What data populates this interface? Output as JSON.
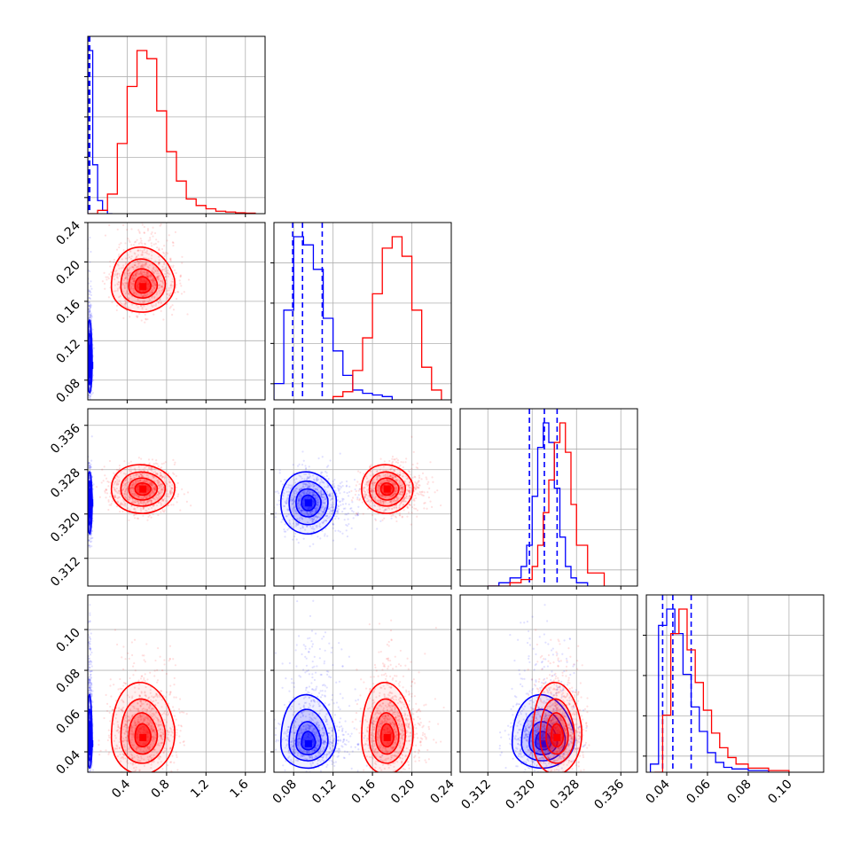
{
  "colors": {
    "blue": "#0000ff",
    "red": "#ff0000",
    "grid": "#b0b0b0"
  },
  "chart_data": {
    "type": "corner",
    "grid": true,
    "parameters": [
      {
        "range": [
          0.0,
          1.8
        ],
        "ticks": [
          0.4,
          0.8,
          1.2,
          1.6
        ],
        "tick_labels": [
          "0.4",
          "0.8",
          "1.2",
          "1.6"
        ]
      },
      {
        "range": [
          0.06,
          0.24
        ],
        "ticks": [
          0.08,
          0.12,
          0.16,
          0.2,
          0.24
        ],
        "tick_labels": [
          "0.08",
          "0.12",
          "0.16",
          "0.20",
          "0.24"
        ]
      },
      {
        "range": [
          0.307,
          0.339
        ],
        "ticks": [
          0.312,
          0.32,
          0.328,
          0.336
        ],
        "tick_labels": [
          "0.312",
          "0.320",
          "0.328",
          "0.336"
        ]
      },
      {
        "range": [
          0.03,
          0.117
        ],
        "ticks": [
          0.04,
          0.06,
          0.08,
          0.1
        ],
        "tick_labels": [
          "0.04",
          "0.06",
          "0.08",
          "0.10"
        ]
      }
    ],
    "series": [
      {
        "color": "#0000ff",
        "means": [
          0.02,
          0.095,
          0.322,
          0.044
        ],
        "sigmas": [
          0.012,
          0.014,
          0.0028,
          0.006
        ],
        "skew": [
          0,
          0.018,
          0,
          0.012
        ],
        "quantiles": [
          [
            0.005,
            0.01,
            0.02
          ],
          [
            0.079,
            0.089,
            0.109
          ],
          [
            0.3195,
            0.3222,
            0.3245
          ],
          [
            0.038,
            0.043,
            0.052
          ]
        ],
        "histograms": [
          {
            "x": [
              0.0,
              0.05,
              0.1,
              0.15,
              0.2,
              0.25
            ],
            "y": [
              1.0,
              0.3,
              0.08,
              0.02,
              0.0,
              0.0
            ]
          },
          {
            "x": [
              0.06,
              0.07,
              0.08,
              0.09,
              0.1,
              0.11,
              0.12,
              0.13,
              0.14,
              0.15,
              0.16,
              0.17,
              0.18
            ],
            "y": [
              0.1,
              0.55,
              1.0,
              0.95,
              0.8,
              0.5,
              0.3,
              0.15,
              0.06,
              0.04,
              0.03,
              0.02,
              0.0
            ]
          },
          {
            "x": [
              0.312,
              0.314,
              0.316,
              0.318,
              0.319,
              0.32,
              0.321,
              0.322,
              0.323,
              0.324,
              0.325,
              0.326,
              0.327,
              0.328,
              0.33
            ],
            "y": [
              0.0,
              0.02,
              0.05,
              0.12,
              0.25,
              0.55,
              0.85,
              1.0,
              0.88,
              0.6,
              0.3,
              0.12,
              0.05,
              0.02,
              0.0
            ]
          },
          {
            "x": [
              0.032,
              0.036,
              0.04,
              0.044,
              0.048,
              0.052,
              0.056,
              0.06,
              0.064,
              0.068,
              0.072,
              0.08,
              0.09
            ],
            "y": [
              0.05,
              0.9,
              1.0,
              0.85,
              0.6,
              0.4,
              0.25,
              0.12,
              0.06,
              0.03,
              0.02,
              0.01,
              0.0
            ]
          }
        ]
      },
      {
        "color": "#ff0000",
        "means": [
          0.56,
          0.175,
          0.3245,
          0.047
        ],
        "sigmas": [
          0.16,
          0.013,
          0.0022,
          0.009
        ],
        "skew": [
          0,
          0.014,
          0,
          0.009
        ],
        "quantiles": [],
        "histograms": [
          {
            "x": [
              0.0,
              0.1,
              0.2,
              0.3,
              0.4,
              0.5,
              0.6,
              0.7,
              0.8,
              0.9,
              1.0,
              1.1,
              1.2,
              1.3,
              1.4,
              1.5,
              1.6,
              1.7
            ],
            "y": [
              0.0,
              0.02,
              0.12,
              0.43,
              0.78,
              1.0,
              0.95,
              0.63,
              0.38,
              0.2,
              0.09,
              0.05,
              0.03,
              0.015,
              0.01,
              0.005,
              0.003,
              0.0
            ]
          },
          {
            "x": [
              0.12,
              0.13,
              0.14,
              0.15,
              0.16,
              0.17,
              0.18,
              0.19,
              0.2,
              0.21,
              0.22,
              0.23
            ],
            "y": [
              0.02,
              0.05,
              0.18,
              0.38,
              0.65,
              0.93,
              1.0,
              0.88,
              0.55,
              0.2,
              0.06,
              0.0
            ]
          },
          {
            "x": [
              0.312,
              0.316,
              0.318,
              0.32,
              0.321,
              0.322,
              0.323,
              0.324,
              0.325,
              0.326,
              0.327,
              0.328,
              0.33,
              0.333
            ],
            "y": [
              0.0,
              0.02,
              0.04,
              0.12,
              0.25,
              0.45,
              0.65,
              0.88,
              1.0,
              0.82,
              0.5,
              0.25,
              0.08,
              0.0
            ]
          },
          {
            "x": [
              0.034,
              0.038,
              0.042,
              0.046,
              0.05,
              0.054,
              0.058,
              0.062,
              0.066,
              0.07,
              0.074,
              0.08,
              0.09,
              0.1
            ],
            "y": [
              0.0,
              0.35,
              0.85,
              1.0,
              0.75,
              0.55,
              0.38,
              0.24,
              0.15,
              0.09,
              0.05,
              0.025,
              0.01,
              0.0
            ]
          }
        ]
      }
    ]
  }
}
